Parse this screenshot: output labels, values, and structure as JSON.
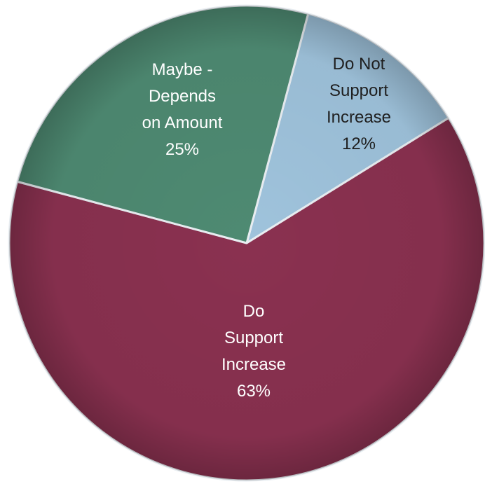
{
  "chart_data": {
    "type": "pie",
    "title": "",
    "slices": [
      {
        "name": "Do Not Support Increase",
        "label_lines": [
          "Do Not",
          "Support",
          "Increase"
        ],
        "percent_label": "12%",
        "value": 12,
        "color": "#9fc3dc",
        "text_color": "#1f1f1f"
      },
      {
        "name": "Do Support Increase",
        "label_lines": [
          "Do",
          "Support",
          "Increase"
        ],
        "percent_label": "63%",
        "value": 63,
        "color": "#8a3150",
        "text_color": "#ffffff"
      },
      {
        "name": "Maybe - Depends on Amount",
        "label_lines": [
          "Maybe -",
          "Depends",
          "on Amount"
        ],
        "percent_label": "25%",
        "value": 25,
        "color": "#4e8a72",
        "text_color": "#ffffff"
      }
    ],
    "start_angle_deg": 15,
    "direction": "clockwise",
    "legend": "none"
  }
}
